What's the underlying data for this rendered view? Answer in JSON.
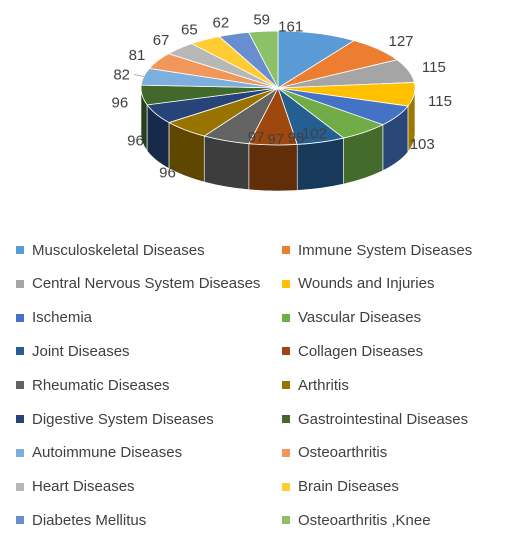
{
  "chart_data": {
    "type": "pie",
    "style": "3d",
    "legend_position": "bottom",
    "categories": [
      "Musculoskeletal Diseases",
      "Immune System Diseases",
      "Central Nervous  System Diseases",
      "Wounds and Injuries",
      "Ischemia",
      "Vascular Diseases",
      "Joint Diseases",
      "Collagen Diseases",
      "Rheumatic  Diseases",
      "Arthritis",
      "Digestive  System Diseases",
      "Gastrointestinal Diseases",
      "Autoimmune  Diseases",
      "Osteoarthritis",
      "Heart  Diseases",
      "Brain  Diseases",
      "Diabetes Mellitus",
      "Osteoarthritis ,Knee"
    ],
    "values": [
      161,
      127,
      115,
      115,
      103,
      102,
      98,
      97,
      97,
      96,
      96,
      96,
      82,
      81,
      67,
      65,
      62,
      59
    ],
    "colors": [
      "#5B9BD5",
      "#ED7D31",
      "#A5A5A5",
      "#FFC000",
      "#4472C4",
      "#70AD47",
      "#255E91",
      "#9E480E",
      "#636363",
      "#997300",
      "#264478",
      "#43682B",
      "#7CAFDD",
      "#F1975A",
      "#B7B7B7",
      "#FFCD33",
      "#698ED0",
      "#8CC168"
    ]
  }
}
